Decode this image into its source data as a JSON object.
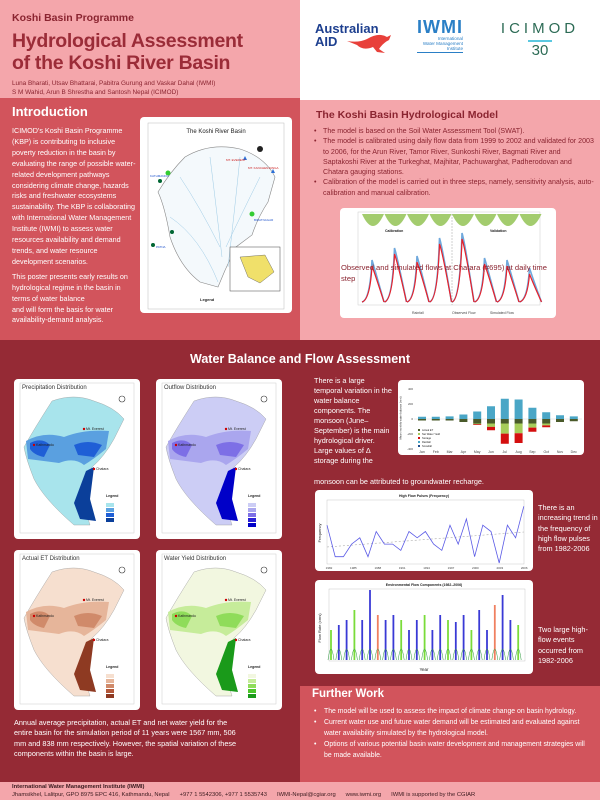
{
  "header": {
    "programme": "Koshi Basin Programme",
    "title_line1": "Hydrological Assessment",
    "title_line2": "of the Koshi River Basin",
    "authors_line1": "Luna Bharati, Utsav Bhattarai, Pabitra Gurung and Vaskar Dahal (IWMI)",
    "authors_line2": "S M Wahid, Arun B Shrestha and Santosh Nepal (ICIMOD)"
  },
  "logos": {
    "ausaid_line1": "Australian",
    "ausaid_line2": "AID",
    "iwmi": "IWMI",
    "iwmi_sub1": "International",
    "iwmi_sub2": "Water Management",
    "iwmi_sub3": "Institute",
    "icimod": "ICIMOD",
    "icimod_sub": "30"
  },
  "intro": {
    "heading": "Introduction",
    "para1": "ICIMOD's Koshi Basin Programme (KBP) is contributing to inclusive poverty reduction in the basin by evaluating the range of possible water-related development pathways considering climate change, hazards risks and freshwater ecosystems sustainability. The KBP is collaborating with International Water Management Institute (IWMI) to assess water resources availability and demand trends, and water resource development scenarios.",
    "para2": "This poster presents early results on hydrological regime in the basin in terms of water balance",
    "para3": "and will form the basis for water availability-demand analysis.",
    "map_title": "The Koshi River Basin",
    "map_labels": {
      "everest": "MT. EVEREST",
      "kanchenjunga": "MT. KANCHENJUNGA",
      "kathmandu": "KATHMANDU",
      "biratnagar": "BIRATNAGAR",
      "patna": "PATNA",
      "legend": "Legend"
    }
  },
  "model": {
    "heading": "The Koshi Basin Hydrological Model",
    "bullets": [
      "The model is based on the Soil Water Assessment Tool (SWAT).",
      "The model is calibrated using daily flow data from 1999 to 2002 and validated for 2003 to 2006, for the Arun River, Tamor River, Sunkoshi River, Bagmati River and Saptakoshi River at the Turkeghat, Majhitar, Pachuwarghat, Padherodovan and Chatara gauging stations.",
      "Calibration of the model is carried out in three steps, namely, sensitivity analysis, auto-calibration and manual calibration."
    ],
    "hydrograph": {
      "calibration_label": "Calibration",
      "validation_label": "Validation",
      "legend": [
        "Rainfall",
        "Observed Flow",
        "Simulated Flow"
      ],
      "colors": {
        "rainfall": "#8cbf4a",
        "observed": "#6fa8dc",
        "simulated": "#e8202a"
      }
    },
    "caption": "Observed and simulated flows at Chatara (#695) at daily time step"
  },
  "water_balance": {
    "heading": "Water Balance and Flow Assessment",
    "maps": [
      {
        "title": "Precipitation Distribution",
        "colors": [
          "#a8e4ec",
          "#5aa0e0",
          "#1f5fd6",
          "#0b3f9a"
        ]
      },
      {
        "title": "Outflow Distribution",
        "colors": [
          "#cccdf5",
          "#aaa6ee",
          "#7d6fe6",
          "#2a1fd6",
          "#0000c8"
        ]
      },
      {
        "title": "Actual ET Distribution",
        "colors": [
          "#f6dfcf",
          "#e6b59a",
          "#d08a6a",
          "#b4583a",
          "#8e3a22"
        ]
      },
      {
        "title": "Water Yield Distribution",
        "colors": [
          "#f2f7e0",
          "#c6ec9a",
          "#8fdc5a",
          "#4cc62a",
          "#1a9a1a"
        ]
      }
    ],
    "map_places": {
      "kathmandu": "Kathmandu",
      "everest": "Mt. Everest",
      "chatara": "Chatara",
      "legend": "Legend"
    },
    "maps_caption": "Annual average precipitation, actual ET and net water yield for the entire basin for the simulation period of 11 years were 1567 mm, 506 mm and 838 mm respectively. However, the spatial variation of these components within the basin is large.",
    "balance_text": "There is a large temporal variation in the water balance components. The monsoon (June–September) is the main hydrological driver. Large values of Δ storage during the",
    "balance_text2": "monsoon can be attributed to groundwater recharge.",
    "monthly_chart": {
      "ylabel": "Mean monthly water balance (mm)",
      "months": [
        "Jan",
        "Feb",
        "Mar",
        "Apr",
        "May",
        "Jun",
        "Jul",
        "Aug",
        "Sep",
        "Oct",
        "Nov",
        "Dec"
      ],
      "yticks": [
        "400",
        "200",
        "0",
        "-200",
        "-400"
      ],
      "legend": [
        "Actual ET",
        "Net Water Yield",
        "Storage",
        "Rainfall",
        "Snowfall"
      ],
      "colors": [
        "#4a5a2a",
        "#a6cc5a",
        "#d40f0f",
        "#4aa6c6",
        "#1f4f8f"
      ]
    },
    "highflow": {
      "title": "High Flow Pulses (Frequency)",
      "ylabel": "Frequency",
      "xticks": [
        "1982",
        "1985",
        "1988",
        "1991",
        "1994",
        "1997",
        "2000",
        "2003",
        "2006"
      ],
      "text": "There is an increasing trend in the frequency of high flow pulses from 1982-2006"
    },
    "envflow": {
      "title": "Environmental Flow Components (1982–2006)",
      "ylabel": "Flow Rate (cms)",
      "xlabel": "Year",
      "text": "Two large high-flow events occurred from 1982-2006"
    }
  },
  "further": {
    "heading": "Further Work",
    "bullets": [
      "The model will be used to assess the impact of climate change on basin hydrology.",
      "Current water use and future water demand will be estimated and evaluated against water availability simulated by the hydrological model.",
      "Options of various potential basin water development and management strategies will be made available."
    ]
  },
  "footer": {
    "org": "International Water Management Institute (IWMI)",
    "address": "Jhamsikhel, Lalitpur, GPO 8975 EPC 416, Kathmandu, Nepal",
    "phone": "+977 1 5542306, +977 1 5535743",
    "email": "IWMI-Nepal@cgiar.org",
    "web": "www.iwmi.org",
    "support": "IWMI is supported by the CGIAR"
  },
  "colors": {
    "dark_red": "#952a35",
    "mid_red": "#d2545c",
    "pink": "#f4a6ab"
  }
}
